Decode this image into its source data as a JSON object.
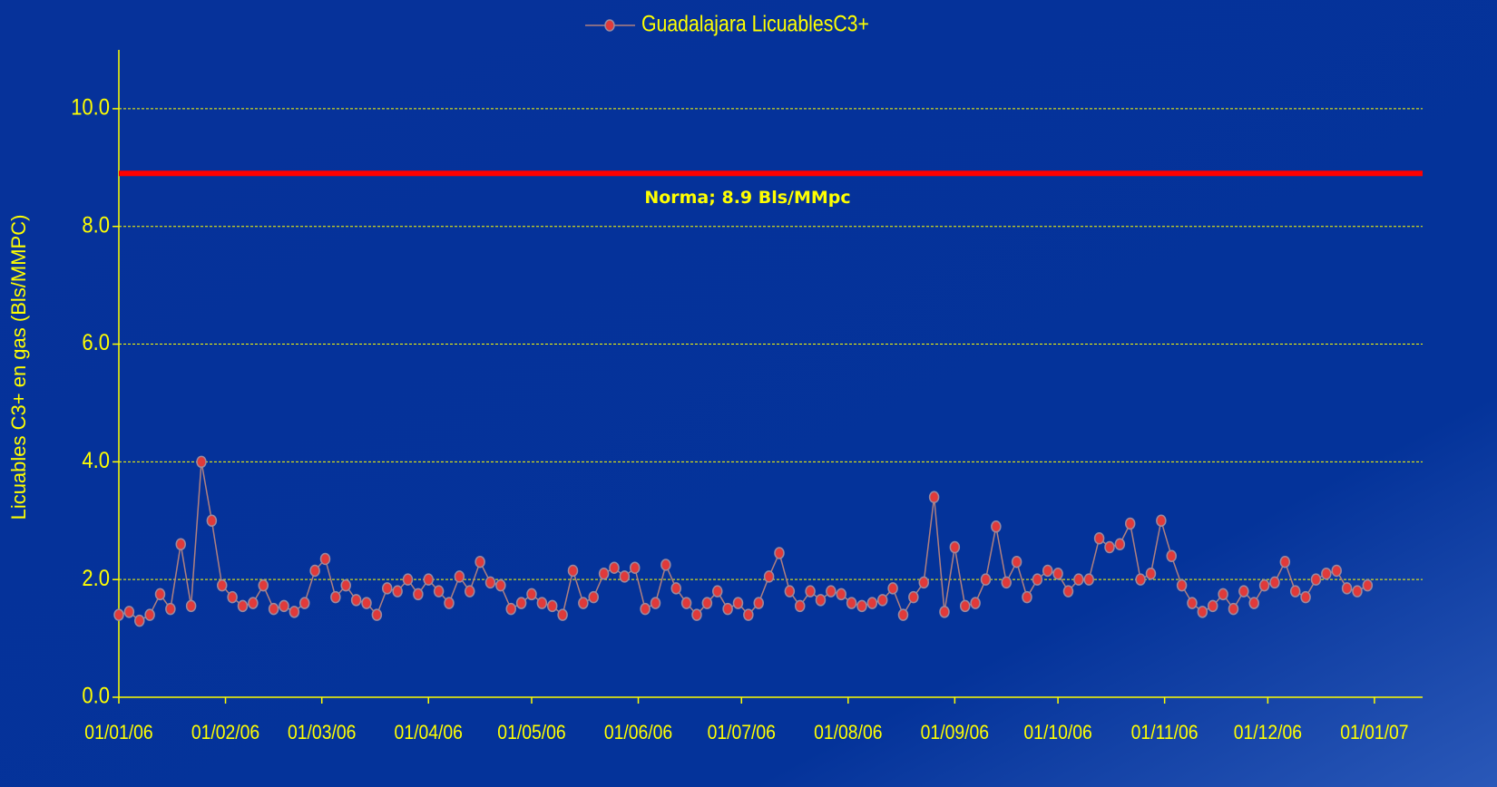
{
  "chart_data": {
    "type": "line",
    "legend_position": "top",
    "ylabel": "Licuables C3+ en gas (Bls/MMPC)",
    "ylim": [
      0,
      11
    ],
    "yticks": [
      {
        "value": 0,
        "label": "0.0"
      },
      {
        "value": 2,
        "label": "2.0"
      },
      {
        "value": 4,
        "label": "4.0"
      },
      {
        "value": 6,
        "label": "6.0"
      },
      {
        "value": 8,
        "label": "8.0"
      },
      {
        "value": 10,
        "label": "10.0"
      }
    ],
    "grid": true,
    "xlim": [
      "2006-01-01",
      "2007-01-15"
    ],
    "xticks": [
      {
        "value": "2006-01-01",
        "label": "01/01/06"
      },
      {
        "value": "2006-02-01",
        "label": "01/02/06"
      },
      {
        "value": "2006-03-01",
        "label": "01/03/06"
      },
      {
        "value": "2006-04-01",
        "label": "01/04/06"
      },
      {
        "value": "2006-05-01",
        "label": "01/05/06"
      },
      {
        "value": "2006-06-01",
        "label": "01/06/06"
      },
      {
        "value": "2006-07-01",
        "label": "01/07/06"
      },
      {
        "value": "2006-08-01",
        "label": "01/08/06"
      },
      {
        "value": "2006-09-01",
        "label": "01/09/06"
      },
      {
        "value": "2006-10-01",
        "label": "01/10/06"
      },
      {
        "value": "2006-11-01",
        "label": "01/11/06"
      },
      {
        "value": "2006-12-01",
        "label": "01/12/06"
      },
      {
        "value": "2007-01-01",
        "label": "01/01/07"
      }
    ],
    "reference_line": {
      "value": 8.9,
      "label": "Norma; 8.9 Bls/MMpc",
      "color": "#ff0000"
    },
    "x": [
      "2006-01-01",
      "2006-01-04",
      "2006-01-07",
      "2006-01-10",
      "2006-01-13",
      "2006-01-16",
      "2006-01-19",
      "2006-01-22",
      "2006-01-25",
      "2006-01-28",
      "2006-01-31",
      "2006-02-03",
      "2006-02-06",
      "2006-02-09",
      "2006-02-12",
      "2006-02-15",
      "2006-02-18",
      "2006-02-21",
      "2006-02-24",
      "2006-02-27",
      "2006-03-02",
      "2006-03-05",
      "2006-03-08",
      "2006-03-11",
      "2006-03-14",
      "2006-03-17",
      "2006-03-20",
      "2006-03-23",
      "2006-03-26",
      "2006-03-29",
      "2006-04-01",
      "2006-04-04",
      "2006-04-07",
      "2006-04-10",
      "2006-04-13",
      "2006-04-16",
      "2006-04-19",
      "2006-04-22",
      "2006-04-25",
      "2006-04-28",
      "2006-05-01",
      "2006-05-04",
      "2006-05-07",
      "2006-05-10",
      "2006-05-13",
      "2006-05-16",
      "2006-05-19",
      "2006-05-22",
      "2006-05-25",
      "2006-05-28",
      "2006-05-31",
      "2006-06-03",
      "2006-06-06",
      "2006-06-09",
      "2006-06-12",
      "2006-06-15",
      "2006-06-18",
      "2006-06-21",
      "2006-06-24",
      "2006-06-27",
      "2006-06-30",
      "2006-07-03",
      "2006-07-06",
      "2006-07-09",
      "2006-07-12",
      "2006-07-15",
      "2006-07-18",
      "2006-07-21",
      "2006-07-24",
      "2006-07-27",
      "2006-07-30",
      "2006-08-02",
      "2006-08-05",
      "2006-08-08",
      "2006-08-11",
      "2006-08-14",
      "2006-08-17",
      "2006-08-20",
      "2006-08-23",
      "2006-08-26",
      "2006-08-29",
      "2006-09-01",
      "2006-09-04",
      "2006-09-07",
      "2006-09-10",
      "2006-09-13",
      "2006-09-16",
      "2006-09-19",
      "2006-09-22",
      "2006-09-25",
      "2006-09-28",
      "2006-10-01",
      "2006-10-04",
      "2006-10-07",
      "2006-10-10",
      "2006-10-13",
      "2006-10-16",
      "2006-10-19",
      "2006-10-22",
      "2006-10-25",
      "2006-10-28",
      "2006-10-31",
      "2006-11-03",
      "2006-11-06",
      "2006-11-09",
      "2006-11-12",
      "2006-11-15",
      "2006-11-18",
      "2006-11-21",
      "2006-11-24",
      "2006-11-27",
      "2006-11-30",
      "2006-12-03",
      "2006-12-06",
      "2006-12-09",
      "2006-12-12",
      "2006-12-15",
      "2006-12-18",
      "2006-12-21",
      "2006-12-24",
      "2006-12-27",
      "2006-12-30"
    ],
    "series": [
      {
        "name": "Guadalajara LicuablesC3+",
        "color": "#e03a3a",
        "values": [
          1.4,
          1.45,
          1.3,
          1.4,
          1.75,
          1.5,
          2.6,
          1.55,
          4.0,
          3.0,
          1.9,
          1.7,
          1.55,
          1.6,
          1.9,
          1.5,
          1.55,
          1.45,
          1.6,
          2.15,
          2.35,
          1.7,
          1.9,
          1.65,
          1.6,
          1.4,
          1.85,
          1.8,
          2.0,
          1.75,
          2.0,
          1.8,
          1.6,
          2.05,
          1.8,
          2.3,
          1.95,
          1.9,
          1.5,
          1.6,
          1.75,
          1.6,
          1.55,
          1.4,
          2.15,
          1.6,
          1.7,
          2.1,
          2.2,
          2.05,
          2.2,
          1.5,
          1.6,
          2.25,
          1.85,
          1.6,
          1.4,
          1.6,
          1.8,
          1.5,
          1.6,
          1.4,
          1.6,
          2.05,
          2.45,
          1.8,
          1.55,
          1.8,
          1.65,
          1.8,
          1.75,
          1.6,
          1.55,
          1.6,
          1.65,
          1.85,
          1.4,
          1.7,
          1.95,
          3.4,
          1.45,
          2.55,
          1.55,
          1.6,
          2.0,
          2.9,
          1.95,
          2.3,
          1.7,
          2.0,
          2.15,
          2.1,
          1.8,
          2.0,
          2.0,
          2.7,
          2.55,
          2.6,
          2.95,
          2.0,
          2.1,
          3.0,
          2.4,
          1.9,
          1.6,
          1.45,
          1.55,
          1.75,
          1.5,
          1.8,
          1.6,
          1.9,
          1.95,
          2.3,
          1.8,
          1.7,
          2.0,
          2.1,
          2.15,
          1.85,
          1.8,
          1.9
        ]
      }
    ]
  }
}
